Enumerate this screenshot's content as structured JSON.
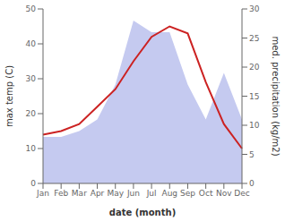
{
  "chart_data": {
    "type": "line",
    "xlabel": "date (month)",
    "ylabel": "max temp (C)",
    "y2label": "med. precipitation (kg/m2)",
    "categories": [
      "Jan",
      "Feb",
      "Mar",
      "Apr",
      "May",
      "Jun",
      "Jul",
      "Aug",
      "Sep",
      "Oct",
      "Nov",
      "Dec"
    ],
    "series": [
      {
        "type": "area",
        "axis": "y2",
        "color": "#c5caf0",
        "values": [
          8,
          8,
          9,
          11,
          17,
          28,
          26,
          26,
          17,
          11,
          19,
          11
        ]
      },
      {
        "type": "line",
        "color": "#cc2222",
        "values": [
          14,
          15,
          17,
          22,
          27,
          35,
          42,
          45,
          43,
          29,
          17,
          10
        ]
      }
    ],
    "ylim": [
      0,
      50
    ],
    "yticks": [
      0,
      10,
      20,
      30,
      40,
      50
    ],
    "y2lim": [
      0,
      30
    ],
    "y2ticks": [
      0,
      5,
      10,
      15,
      20,
      25,
      30
    ],
    "grid": false
  }
}
